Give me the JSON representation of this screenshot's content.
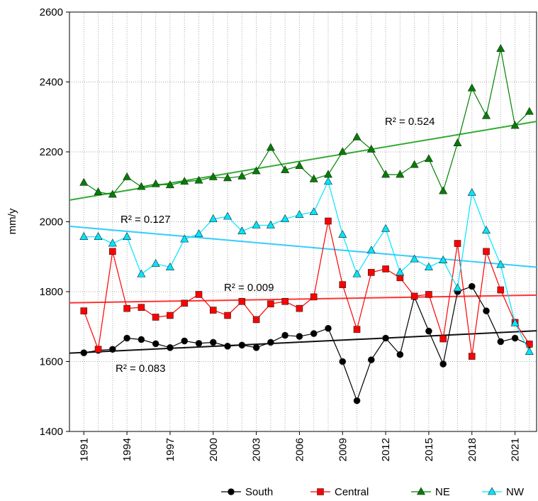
{
  "chart_data": {
    "type": "line",
    "y_label": "mm/y",
    "x": [
      1991,
      1992,
      1993,
      1994,
      1995,
      1996,
      1997,
      1998,
      1999,
      2000,
      2001,
      2002,
      2003,
      2004,
      2005,
      2006,
      2007,
      2008,
      2009,
      2010,
      2011,
      2012,
      2013,
      2014,
      2015,
      2016,
      2017,
      2018,
      2019,
      2020,
      2021,
      2022
    ],
    "xlim": [
      1990,
      2022.5
    ],
    "xticks": [
      1991,
      1994,
      1997,
      2000,
      2003,
      2006,
      2009,
      2012,
      2015,
      2018,
      2021
    ],
    "ylim": [
      1400,
      2600
    ],
    "yticks": [
      1400,
      1600,
      1800,
      2000,
      2200,
      2400,
      2600
    ],
    "grid": true,
    "legend": "bottom",
    "series": [
      {
        "name": "South",
        "color": "#000000",
        "trend_color": "#111111",
        "marker": "circle",
        "values": [
          1625,
          1632,
          1635,
          1667,
          1663,
          1651,
          1640,
          1659,
          1652,
          1655,
          1644,
          1647,
          1640,
          1655,
          1675,
          1672,
          1680,
          1695,
          1600,
          1488,
          1605,
          1667,
          1620,
          1785,
          1687,
          1593,
          1800,
          1815,
          1745,
          1657,
          1667,
          1648
        ],
        "trend": [
          1624,
          1688
        ],
        "r2_label": "R² = 0.083"
      },
      {
        "name": "Central",
        "color": "#ff0000",
        "trend_color": "#ff3333",
        "marker": "square",
        "values": [
          1745,
          1635,
          1915,
          1752,
          1755,
          1727,
          1732,
          1767,
          1792,
          1747,
          1732,
          1772,
          1720,
          1765,
          1772,
          1752,
          1785,
          2002,
          1820,
          1692,
          1855,
          1865,
          1840,
          1787,
          1792,
          1665,
          1938,
          1615,
          1915,
          1805,
          1712,
          1650
        ],
        "trend": [
          1768,
          1790
        ],
        "r2_label": "R² = 0.009"
      },
      {
        "name": "NE",
        "color": "#008000",
        "trend_color": "#33aa33",
        "marker": "triangle",
        "values": [
          2112,
          2085,
          2078,
          2128,
          2100,
          2108,
          2105,
          2115,
          2118,
          2128,
          2125,
          2130,
          2145,
          2212,
          2148,
          2160,
          2122,
          2135,
          2200,
          2242,
          2207,
          2135,
          2135,
          2163,
          2180,
          2088,
          2225,
          2382,
          2303,
          2495,
          2275,
          2315
        ],
        "trend": [
          2062,
          2287
        ],
        "r2_label": "R² = 0.524"
      },
      {
        "name": "NW",
        "color": "#00e5ff",
        "trend_color": "#33ccff",
        "marker": "triangle",
        "values": [
          1957,
          1957,
          1938,
          1957,
          1850,
          1880,
          1870,
          1950,
          1965,
          2008,
          2015,
          1973,
          1990,
          1990,
          2008,
          2020,
          2028,
          2115,
          1963,
          1850,
          1918,
          1980,
          1855,
          1893,
          1870,
          1890,
          1810,
          2083,
          1975,
          1877,
          1710,
          1628
        ],
        "trend": [
          1987,
          1870
        ],
        "r2_label": "R² = 0.127"
      }
    ]
  }
}
